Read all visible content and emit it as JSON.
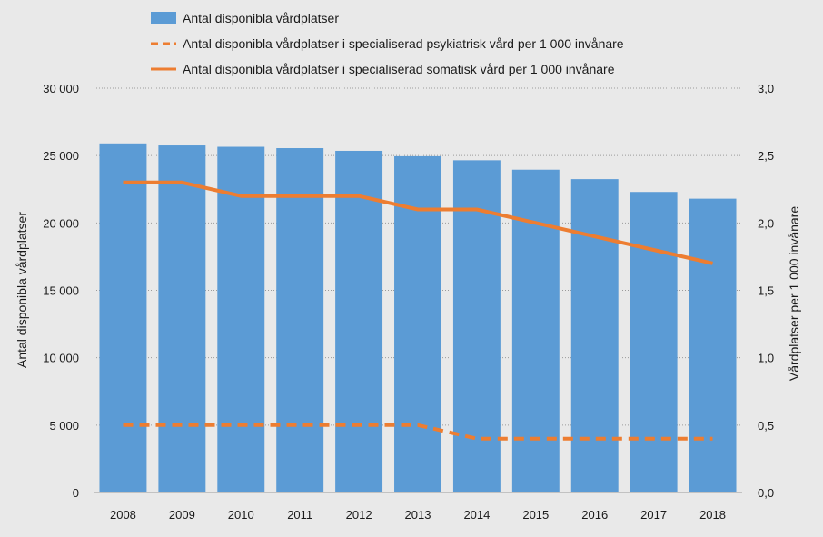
{
  "chart_data": {
    "type": "bar",
    "categories": [
      "2008",
      "2009",
      "2010",
      "2011",
      "2012",
      "2013",
      "2014",
      "2015",
      "2016",
      "2017",
      "2018"
    ],
    "bar_series": {
      "name": "Antal disponibla vårdplatser",
      "axis": "left",
      "color": "#5b9bd5",
      "values": [
        25900,
        25750,
        25650,
        25550,
        25350,
        24950,
        24650,
        23950,
        23250,
        22300,
        21800
      ]
    },
    "line_series": [
      {
        "name": "Antal disponibla vårdplatser i specialiserad psykiatrisk vård per 1 000 invånare",
        "axis": "right",
        "color": "#ed7d31",
        "style": "dashed",
        "values": [
          0.5,
          0.5,
          0.5,
          0.5,
          0.5,
          0.5,
          0.4,
          0.4,
          0.4,
          0.4,
          0.4
        ]
      },
      {
        "name": "Antal disponibla vårdplatser i specialiserad somatisk vård per 1 000 invånare",
        "axis": "right",
        "color": "#ed7d31",
        "style": "solid",
        "values": [
          2.3,
          2.3,
          2.2,
          2.2,
          2.2,
          2.1,
          2.1,
          2.0,
          1.9,
          1.8,
          1.7
        ]
      }
    ],
    "y_left": {
      "label": "Antal disponibla vårdplatser",
      "lim": [
        0,
        30000
      ],
      "ticks": [
        0,
        5000,
        10000,
        15000,
        20000,
        25000,
        30000
      ],
      "tick_labels": [
        "0",
        "5 000",
        "10 000",
        "15 000",
        "20 000",
        "25 000",
        "30 000"
      ]
    },
    "y_right": {
      "label": "Vårdplatser per 1 000 invånare",
      "lim": [
        0,
        3.0
      ],
      "ticks": [
        0,
        0.5,
        1.0,
        1.5,
        2.0,
        2.5,
        3.0
      ],
      "tick_labels": [
        "0,0",
        "0,5",
        "1,0",
        "1,5",
        "2,0",
        "2,5",
        "3,0"
      ]
    },
    "grid": true,
    "legend_position": "top"
  }
}
